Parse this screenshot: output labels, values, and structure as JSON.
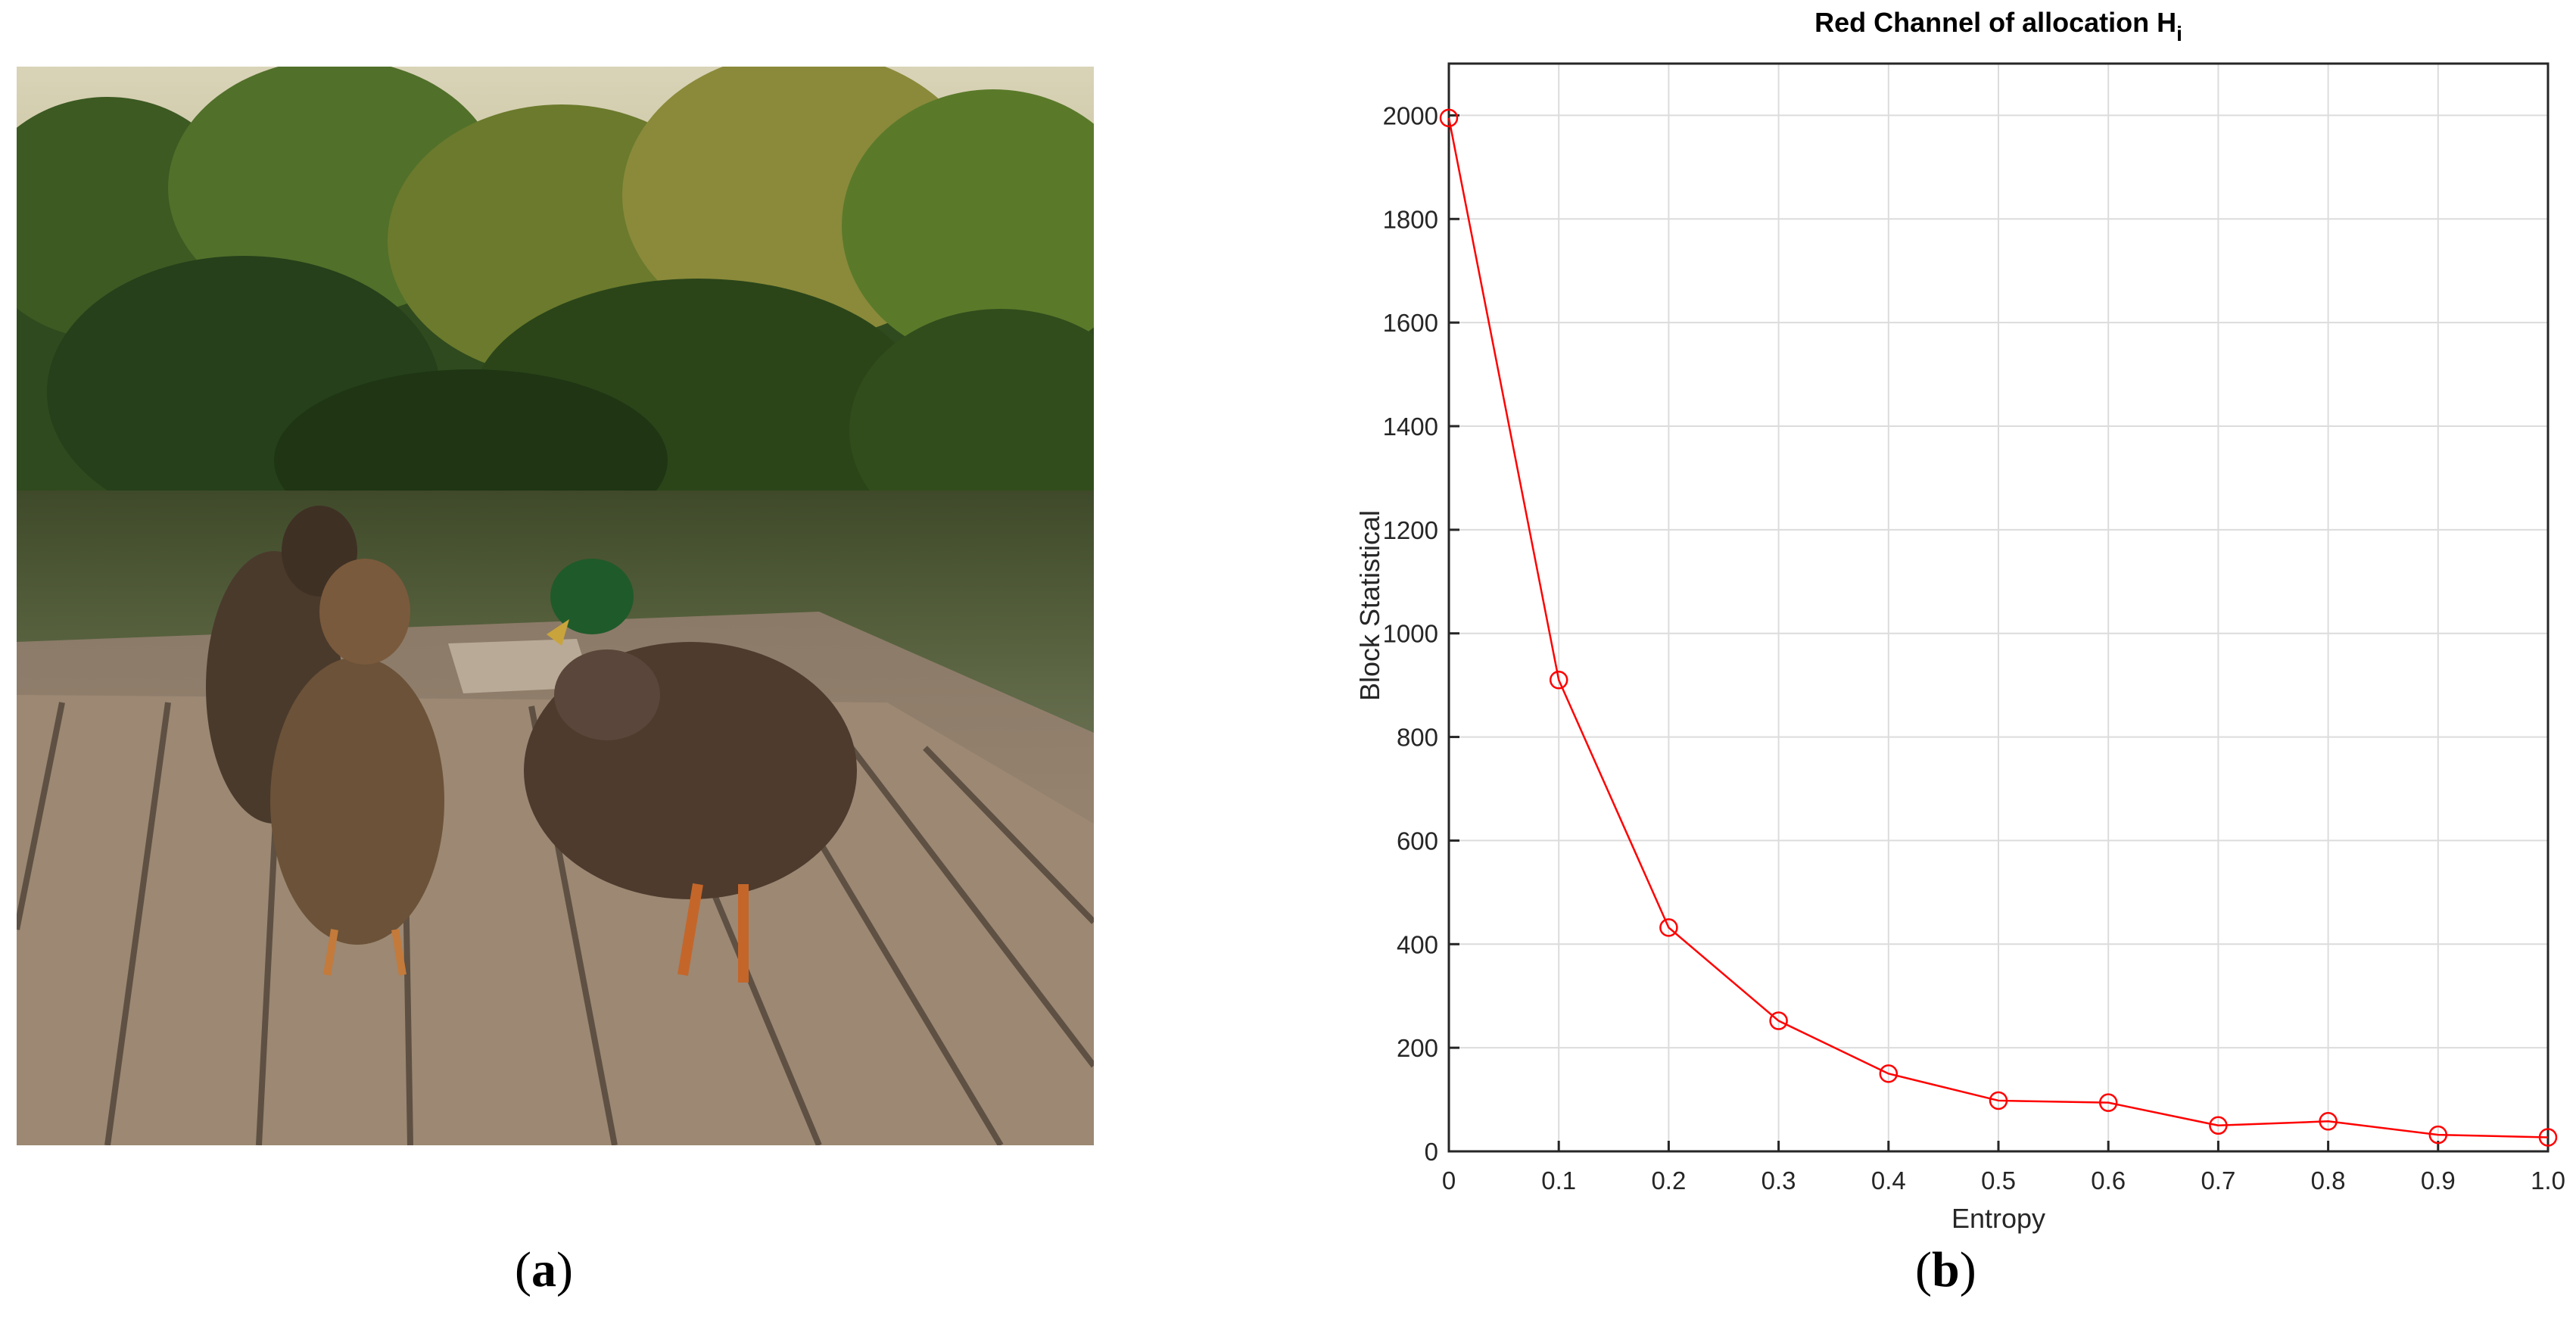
{
  "captions": {
    "a_letter": "a",
    "b_letter": "b"
  },
  "photo": {
    "subject": "mallard ducks on wooden dock by lake"
  },
  "colors": {
    "series": "#ff0000",
    "grid": "#dcdcdc",
    "axis": "#262626"
  },
  "chart_data": {
    "type": "line",
    "title": "Red Channel of allocation H",
    "title_subscript": "i",
    "xlabel": "Entropy",
    "ylabel": "Block Statistical",
    "xlim": [
      0,
      1.0
    ],
    "ylim": [
      0,
      2100
    ],
    "x_ticks": [
      "0",
      "0.1",
      "0.2",
      "0.3",
      "0.4",
      "0.5",
      "0.6",
      "0.7",
      "0.8",
      "0.9",
      "1.0"
    ],
    "y_ticks": [
      0,
      200,
      400,
      600,
      800,
      1000,
      1200,
      1400,
      1600,
      1800,
      2000
    ],
    "grid": true,
    "marker": "circle",
    "series": [
      {
        "x": [
          0,
          0.1,
          0.2,
          0.3,
          0.4,
          0.5,
          0.6,
          0.7,
          0.8,
          0.9,
          1.0
        ],
        "values": [
          1995,
          910,
          432,
          252,
          150,
          98,
          94,
          50,
          58,
          32,
          27
        ]
      }
    ]
  }
}
